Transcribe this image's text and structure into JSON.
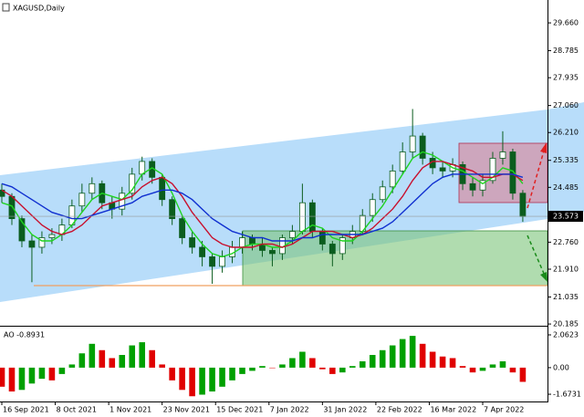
{
  "chart_data": [
    {
      "type": "candlestick",
      "title": "XAGUSD,Daily",
      "x": [
        0,
        3,
        6,
        9,
        12,
        15,
        18,
        21,
        24,
        27,
        30,
        33,
        36,
        39,
        42,
        45,
        48,
        51,
        54,
        57,
        60,
        63,
        66,
        69,
        72,
        75,
        78,
        81,
        84,
        87,
        90,
        93,
        96,
        99,
        102,
        105,
        108,
        111,
        114,
        117,
        120,
        123,
        126,
        129,
        132,
        135,
        138,
        141,
        144,
        147,
        150,
        153,
        156
      ],
      "open": [
        24.4,
        24.2,
        23.5,
        22.8,
        22.6,
        22.9,
        23.0,
        23.3,
        23.9,
        24.3,
        24.6,
        24.0,
        23.8,
        24.3,
        24.9,
        25.3,
        24.8,
        24.1,
        23.5,
        22.9,
        22.6,
        22.3,
        22.0,
        22.3,
        22.6,
        22.9,
        22.7,
        22.5,
        22.4,
        22.9,
        23.1,
        24.0,
        23.1,
        22.7,
        22.4,
        22.9,
        23.1,
        23.6,
        24.1,
        24.5,
        25.0,
        25.6,
        26.1,
        25.4,
        25.1,
        25.0,
        25.2,
        24.6,
        24.4,
        24.7,
        25.4,
        25.6,
        24.3
      ],
      "high": [
        24.6,
        24.3,
        23.6,
        23.0,
        23.1,
        23.2,
        23.5,
        24.1,
        24.6,
        24.8,
        24.7,
        24.2,
        24.5,
        25.1,
        25.45,
        25.4,
        24.9,
        24.2,
        23.6,
        23.1,
        22.8,
        22.4,
        22.5,
        22.8,
        23.1,
        23.0,
        22.9,
        22.6,
        23.0,
        23.3,
        24.6,
        24.1,
        23.2,
        22.8,
        23.0,
        23.3,
        23.8,
        24.3,
        24.7,
        25.2,
        25.9,
        26.95,
        26.2,
        25.6,
        25.3,
        25.4,
        25.3,
        24.8,
        24.9,
        25.6,
        26.25,
        25.7,
        24.4
      ],
      "low": [
        24.0,
        23.3,
        22.6,
        21.5,
        22.4,
        22.7,
        22.8,
        23.2,
        23.7,
        24.1,
        23.8,
        23.5,
        23.6,
        24.1,
        24.7,
        24.6,
        23.9,
        23.3,
        22.7,
        22.4,
        22.0,
        21.45,
        21.8,
        22.1,
        22.4,
        22.5,
        22.3,
        22.0,
        22.2,
        22.7,
        23.0,
        22.9,
        22.5,
        22.0,
        22.2,
        22.7,
        23.0,
        23.4,
        24.0,
        24.3,
        24.9,
        25.4,
        25.2,
        24.9,
        24.8,
        24.8,
        24.4,
        24.2,
        24.2,
        24.6,
        25.2,
        24.1,
        23.4
      ],
      "close": [
        24.2,
        23.5,
        22.8,
        22.6,
        22.9,
        23.0,
        23.3,
        23.9,
        24.3,
        24.6,
        24.0,
        23.8,
        24.3,
        24.9,
        25.3,
        24.8,
        24.1,
        23.5,
        22.9,
        22.6,
        22.3,
        22.0,
        22.3,
        22.6,
        22.9,
        22.7,
        22.5,
        22.4,
        22.9,
        23.1,
        24.0,
        23.1,
        22.7,
        22.4,
        22.9,
        23.1,
        23.6,
        24.1,
        24.5,
        25.0,
        25.6,
        26.1,
        25.4,
        25.1,
        25.0,
        25.2,
        24.6,
        24.4,
        24.7,
        25.4,
        25.6,
        24.3,
        23.57
      ],
      "up_color": "#ffffff",
      "down_color": "#0b5d1e",
      "wick_color": "#0b5d1e",
      "lines": [
        {
          "color": "#1fd31f",
          "values": [
            24.0,
            23.9,
            23.4,
            23.0,
            22.8,
            22.8,
            23.0,
            23.3,
            23.7,
            24.1,
            24.3,
            24.2,
            24.1,
            24.4,
            24.9,
            25.1,
            24.9,
            24.3,
            23.6,
            23.1,
            22.7,
            22.4,
            22.3,
            22.4,
            22.6,
            22.7,
            22.7,
            22.6,
            22.6,
            22.8,
            23.1,
            23.3,
            23.2,
            22.9,
            22.8,
            22.8,
            23.1,
            23.5,
            23.9,
            24.4,
            24.9,
            25.4,
            25.6,
            25.5,
            25.3,
            25.1,
            25.0,
            24.8,
            24.6,
            24.8,
            25.1,
            25.0,
            24.6
          ]
        },
        {
          "color": "#c8102e",
          "values": [
            24.4,
            24.2,
            23.9,
            23.6,
            23.3,
            23.1,
            23.0,
            23.1,
            23.3,
            23.6,
            23.9,
            24.0,
            24.1,
            24.2,
            24.5,
            24.7,
            24.8,
            24.6,
            24.2,
            23.7,
            23.3,
            22.9,
            22.7,
            22.6,
            22.6,
            22.6,
            22.7,
            22.7,
            22.6,
            22.7,
            22.9,
            23.1,
            23.1,
            23.1,
            23.0,
            22.9,
            23.0,
            23.2,
            23.5,
            23.8,
            24.2,
            24.7,
            25.1,
            25.3,
            25.3,
            25.2,
            25.1,
            25.0,
            24.8,
            24.8,
            24.9,
            24.9,
            24.7
          ]
        },
        {
          "color": "#1030d0",
          "values": [
            24.6,
            24.5,
            24.3,
            24.1,
            23.9,
            23.7,
            23.6,
            23.5,
            23.5,
            23.6,
            23.7,
            23.8,
            23.9,
            24.0,
            24.2,
            24.3,
            24.4,
            24.4,
            24.3,
            24.1,
            23.8,
            23.5,
            23.3,
            23.1,
            23.0,
            22.9,
            22.9,
            22.8,
            22.8,
            22.8,
            22.9,
            22.9,
            23.0,
            23.0,
            23.0,
            23.0,
            23.0,
            23.1,
            23.2,
            23.4,
            23.7,
            24.0,
            24.3,
            24.6,
            24.8,
            24.9,
            24.9,
            24.9,
            24.9,
            24.9,
            24.9,
            24.9,
            24.8
          ]
        }
      ],
      "current_price": 23.573,
      "xlim": [
        -0.55,
        163.4
      ],
      "ylim": [
        20.13,
        30.38
      ],
      "yticks": [
        {
          "value": 29.66,
          "label": "29.660"
        },
        28.785,
        27.935,
        {
          "value": 27.06,
          "label": "27.060"
        },
        {
          "value": 26.21,
          "label": "26.210"
        },
        25.335,
        24.485,
        {
          "value": 22.76,
          "label": "22.760"
        },
        {
          "value": 21.91,
          "label": "21.910"
        },
        21.035,
        20.185
      ]
    },
    {
      "type": "bar",
      "title": "AO -0.8931",
      "x": [
        0,
        3,
        6,
        9,
        12,
        15,
        18,
        21,
        24,
        27,
        30,
        33,
        36,
        39,
        42,
        45,
        48,
        51,
        54,
        57,
        60,
        63,
        66,
        69,
        72,
        75,
        78,
        81,
        84,
        87,
        90,
        93,
        96,
        99,
        102,
        105,
        108,
        111,
        114,
        117,
        120,
        123,
        126,
        129,
        132,
        135,
        138,
        141,
        144,
        147,
        150,
        153,
        156
      ],
      "values": [
        -1.2,
        -1.5,
        -1.4,
        -1.0,
        -0.7,
        -0.8,
        -0.4,
        0.2,
        0.9,
        1.5,
        1.1,
        0.6,
        0.8,
        1.4,
        1.6,
        1.1,
        0.2,
        -0.8,
        -1.4,
        -1.8,
        -1.7,
        -1.5,
        -1.2,
        -0.8,
        -0.4,
        -0.2,
        0.1,
        0.0,
        0.2,
        0.6,
        1.0,
        0.6,
        -0.1,
        -0.4,
        -0.3,
        0.1,
        0.4,
        0.8,
        1.1,
        1.4,
        1.8,
        2.0,
        1.5,
        1.0,
        0.7,
        0.6,
        0.1,
        -0.3,
        -0.2,
        0.2,
        0.4,
        -0.3,
        -0.8931
      ],
      "rising_color": "#00a000",
      "falling_color": "#e00000",
      "xlim": [
        -0.55,
        163.4
      ],
      "ylim": [
        -2.13,
        2.58
      ],
      "yticks": [
        2.0623,
        {
          "value": 0,
          "label": "0.00"
        },
        -1.6731
      ],
      "xticks": [
        {
          "value": 0,
          "label": "16 Sep 2021"
        },
        {
          "value": 16,
          "label": "8 Oct 2021"
        },
        {
          "value": 32,
          "label": "1 Nov 2021"
        },
        {
          "value": 48,
          "label": "23 Nov 2021"
        },
        {
          "value": 64,
          "label": "15 Dec 2021"
        },
        {
          "value": 80,
          "label": "7 Jan 2022"
        },
        {
          "value": 96,
          "label": "31 Jan 2022"
        },
        {
          "value": 112,
          "label": "22 Feb 2022"
        },
        {
          "value": 128,
          "label": "16 Mar 2022"
        },
        {
          "value": 144,
          "label": "7 Apr 2022"
        }
      ]
    }
  ]
}
